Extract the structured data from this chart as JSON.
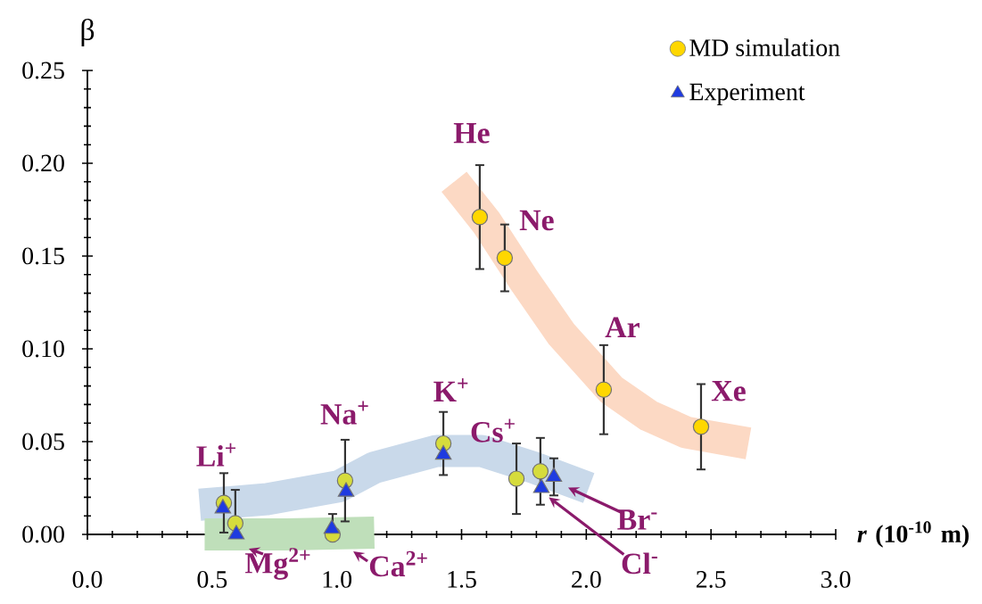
{
  "chart_data": {
    "type": "scatter",
    "xlabel": "*r* (10$^{-10}$ m)",
    "ylabel": "β",
    "xlim": [
      0,
      3
    ],
    "ylim": [
      0,
      0.25
    ],
    "xticks": [
      {
        "value": 0,
        "label": "0.0"
      },
      {
        "value": 0.5,
        "label": "0.5"
      },
      {
        "value": 1,
        "label": "1.0"
      },
      {
        "value": 1.5,
        "label": "1.5"
      },
      {
        "value": 2,
        "label": "2.0"
      },
      {
        "value": 2.5,
        "label": "2.5"
      },
      {
        "value": 3,
        "label": "3.0"
      }
    ],
    "yticks": [
      {
        "value": 0,
        "label": "0.00"
      },
      {
        "value": 0.05,
        "label": "0.05"
      },
      {
        "value": 0.1,
        "label": "0.10"
      },
      {
        "value": 0.15,
        "label": "0.15"
      },
      {
        "value": 0.2,
        "label": "0.20"
      },
      {
        "value": 0.25,
        "label": "0.25"
      }
    ],
    "legend": "top right",
    "series": [
      {
        "type": "line",
        "color": "#c9d9ea",
        "x": [
          0.45,
          0.72,
          1.01,
          1.15,
          1.4,
          1.58,
          1.79,
          2.01
        ],
        "values": [
          0.016,
          0.019,
          0.026,
          0.036,
          0.045,
          0.045,
          0.036,
          0.025
        ]
      },
      {
        "type": "line",
        "color": "#bfdfba",
        "x": [
          0.47,
          0.8,
          1.15
        ],
        "values": [
          0.0,
          0.0,
          0.001
        ]
      },
      {
        "type": "line",
        "color": "#fcd9c4",
        "x": [
          1.47,
          1.6,
          1.75,
          1.9,
          2.0,
          2.1,
          2.25,
          2.4,
          2.65
        ],
        "values": [
          0.19,
          0.168,
          0.137,
          0.108,
          0.093,
          0.078,
          0.064,
          0.055,
          0.049
        ]
      },
      {
        "name": "MD simulation",
        "type": "scatter",
        "marker": "circle",
        "color": "#ffd700",
        "colors": [
          "#d6dc3c",
          "#d6dc3c",
          "#d6dc3c",
          "#d6dc3c",
          "#d6dc3c",
          "#ffd700",
          "#ffd700",
          "#d6dc3c",
          "#d6dc3c",
          "#ffd700",
          "#ffd700"
        ],
        "x": [
          0.547,
          0.593,
          0.983,
          1.033,
          1.427,
          1.573,
          1.673,
          1.72,
          1.816,
          2.07,
          2.46
        ],
        "values": [
          0.017,
          0.006,
          0.0,
          0.029,
          0.049,
          0.171,
          0.149,
          0.03,
          0.034,
          0.078,
          0.058
        ],
        "errors": [
          0.016,
          [
            0.0,
            0.024
          ],
          [
            0.0,
            0.011
          ],
          0.022,
          0.017,
          0.028,
          0.018,
          0.019,
          0.018,
          0.024,
          0.023
        ]
      },
      {
        "name": "Experiment",
        "type": "scatter",
        "marker": "triangle",
        "color": "#1f3be0",
        "x": [
          0.543,
          0.597,
          0.98,
          1.037,
          1.427,
          1.82,
          1.87
        ],
        "values": [
          0.014,
          0.0,
          0.003,
          0.023,
          0.043,
          0.025,
          0.031
        ],
        "errors": [
          null,
          null,
          null,
          null,
          null,
          null,
          0.01
        ]
      }
    ],
    "annotations": [
      {
        "text": "Li$^{+}$",
        "x": 0.547,
        "y": 0.017
      },
      {
        "text": "Mg$^{2+}$",
        "x": 0.597,
        "y": 0.0
      },
      {
        "text": "Ca$^{2+}$",
        "x": 0.98,
        "y": 0.0
      },
      {
        "text": "Na$^{+}$",
        "x": 1.033,
        "y": 0.029
      },
      {
        "text": "K$^{+}$",
        "x": 1.427,
        "y": 0.049
      },
      {
        "text": "Cs$^{+}$",
        "x": 1.72,
        "y": 0.03
      },
      {
        "text": "Br$^{-}$",
        "x": 1.87,
        "y": 0.031
      },
      {
        "text": "Cl$^{-}$",
        "x": 1.85,
        "y": 0.02
      },
      {
        "text": "He",
        "x": 1.573,
        "y": 0.171
      },
      {
        "text": "Ne",
        "x": 1.673,
        "y": 0.149
      },
      {
        "text": "Ar",
        "x": 2.07,
        "y": 0.078
      },
      {
        "text": "Xe",
        "x": 2.46,
        "y": 0.058
      }
    ]
  }
}
